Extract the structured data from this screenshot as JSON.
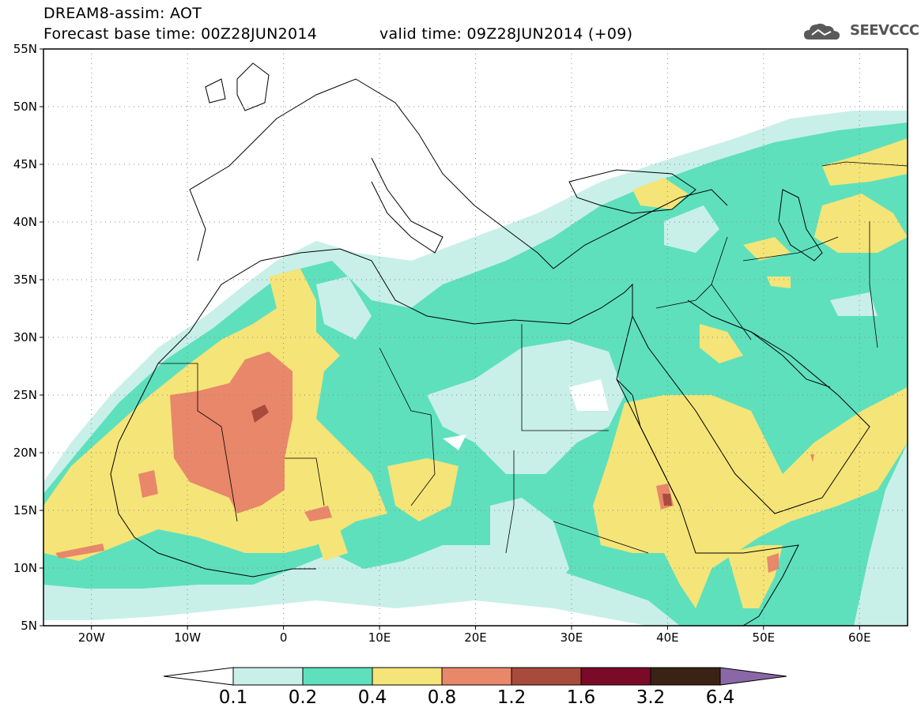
{
  "header": {
    "model_title": "DREAM8-assim: AOT",
    "base_time": "Forecast base time: 00Z28JUN2014",
    "valid_time": "valid time: 09Z28JUN2014 (+09)",
    "logo_text": "SEEVCCC"
  },
  "map": {
    "lon_range": [
      -25,
      65
    ],
    "lat_range": [
      5,
      55
    ],
    "lat_ticks": [
      "55N",
      "50N",
      "45N",
      "40N",
      "35N",
      "30N",
      "25N",
      "20N",
      "15N",
      "10N",
      "5N"
    ],
    "lon_ticks": [
      "20W",
      "10W",
      "0",
      "10E",
      "20E",
      "30E",
      "40E",
      "50E",
      "60E"
    ]
  },
  "colorbar": {
    "levels": [
      "0.1",
      "0.2",
      "0.4",
      "0.8",
      "1.2",
      "1.6",
      "3.2",
      "6.4"
    ],
    "colors": [
      "#c8f0e8",
      "#5ee0bc",
      "#f5e478",
      "#e8876a",
      "#a84a3c",
      "#7a0a28",
      "#3a2214",
      "#8a68a8"
    ],
    "under_color": "#ffffff"
  },
  "colors": {
    "low": "#c8f0e8",
    "moderate": "#5ee0bc",
    "high": "#f5e478",
    "very_high": "#e8876a",
    "extreme": "#a84a3c"
  }
}
